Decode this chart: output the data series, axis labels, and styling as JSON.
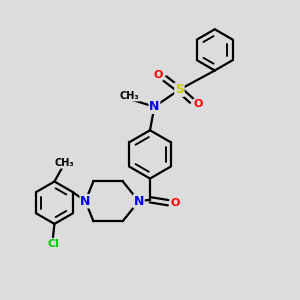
{
  "bg_color": "#dcdcdc",
  "atom_colors": {
    "C": "#000000",
    "N": "#0000ff",
    "O": "#ff0000",
    "S": "#cccc00",
    "Cl": "#00cc00",
    "H": "#000000"
  },
  "bond_color": "#000000",
  "bond_width": 1.6
}
